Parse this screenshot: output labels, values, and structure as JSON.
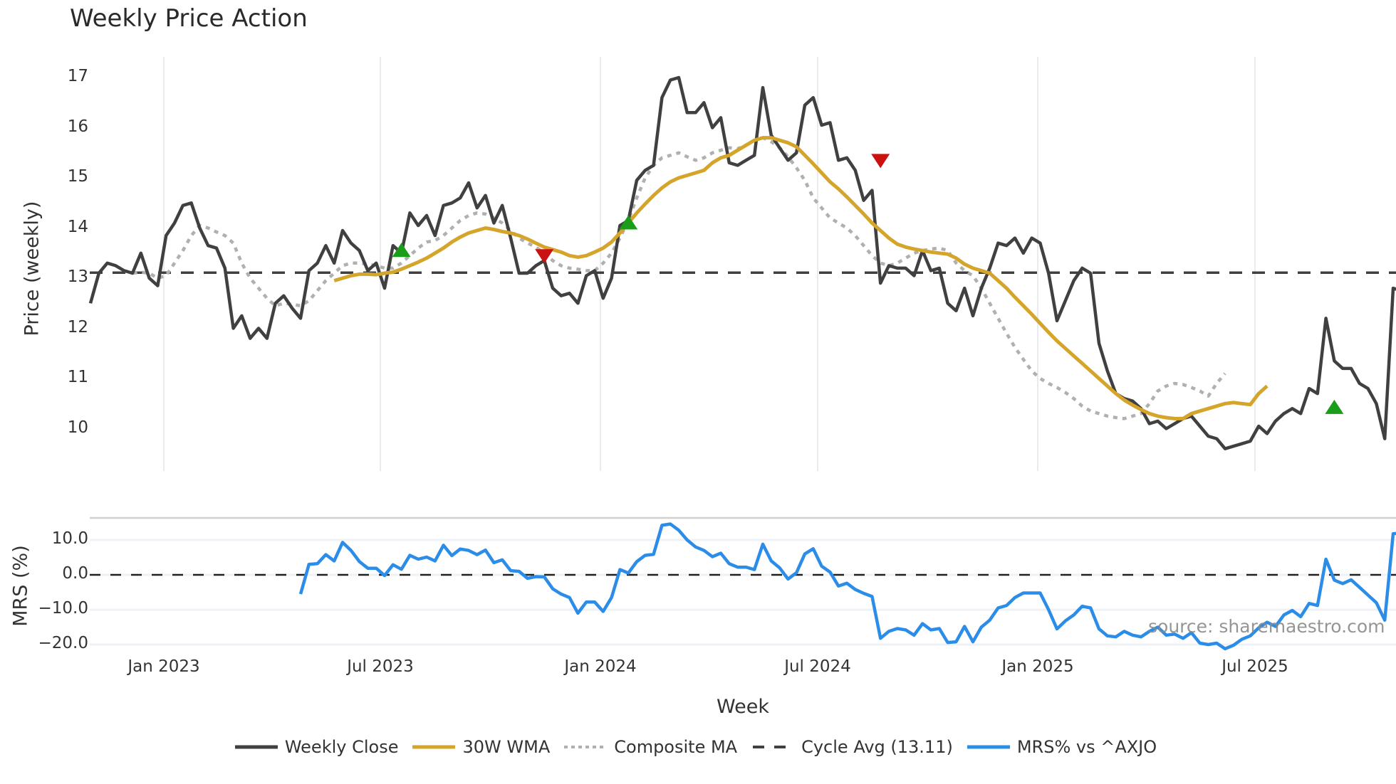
{
  "title": "Weekly Price Action",
  "colors": {
    "weekly_close": "#404040",
    "wma30": "#D4A52A",
    "composite_ma": "#b0b0b0",
    "cycle_avg": "#404040",
    "mrs": "#2B8DE8",
    "buy_marker": "#1a9e1a",
    "sell_marker": "#cc1111",
    "grid": "#e8ecf1"
  },
  "legend": {
    "weekly_close": "Weekly Close",
    "wma30": "30W WMA",
    "composite_ma": "Composite MA",
    "cycle_avg": "Cycle Avg (13.11)",
    "mrs": "MRS% vs ^AXJO"
  },
  "watermark": "source: sharemaestro.com",
  "chart_data": [
    {
      "type": "line",
      "title": "Weekly Price Action",
      "xlabel": "Week",
      "ylabel": "Price (weekly)",
      "yticks": [
        "17",
        "16",
        "15",
        "14",
        "13",
        "12",
        "11",
        "10"
      ],
      "xticks": [
        "Jan 2023",
        "Jul 2023",
        "Jan 2024",
        "Jul 2024",
        "Jan 2025",
        "Jul 2025"
      ],
      "ylim": [
        9.2,
        17.4
      ],
      "grid": true,
      "legend_position": "bottom",
      "x_start": "2022-11 (week 0)",
      "x_step": "1 week",
      "cycle_avg": 13.11,
      "series": [
        {
          "name": "Weekly Close",
          "values": [
            12.5,
            13.1,
            13.3,
            13.25,
            13.15,
            13.1,
            13.5,
            13.0,
            12.85,
            13.85,
            14.1,
            14.45,
            14.5,
            14.0,
            13.65,
            13.6,
            13.2,
            12.0,
            12.25,
            11.8,
            12.0,
            11.8,
            12.5,
            12.65,
            12.4,
            12.2,
            13.15,
            13.3,
            13.65,
            13.3,
            13.95,
            13.7,
            13.55,
            13.15,
            13.3,
            12.8,
            13.65,
            13.5,
            14.3,
            14.05,
            14.25,
            13.85,
            14.45,
            14.5,
            14.6,
            14.9,
            14.4,
            14.65,
            14.1,
            14.45,
            13.8,
            13.1,
            13.1,
            13.25,
            13.35,
            12.8,
            12.65,
            12.7,
            12.5,
            13.05,
            13.15,
            12.6,
            13.0,
            14.05,
            14.15,
            14.95,
            15.15,
            15.25,
            16.6,
            16.95,
            17.0,
            16.3,
            16.3,
            16.5,
            16.0,
            16.2,
            15.3,
            15.25,
            15.35,
            15.45,
            16.8,
            15.85,
            15.6,
            15.35,
            15.5,
            16.45,
            16.6,
            16.05,
            16.1,
            15.35,
            15.4,
            15.15,
            14.55,
            14.75,
            12.9,
            13.25,
            13.2,
            13.2,
            13.05,
            13.55,
            13.15,
            13.2,
            12.5,
            12.35,
            12.8,
            12.25,
            12.8,
            13.2,
            13.7,
            13.65,
            13.8,
            13.5,
            13.8,
            13.7,
            13.1,
            12.15,
            12.55,
            12.95,
            13.2,
            13.1,
            11.7,
            11.15,
            10.7,
            10.6,
            10.55,
            10.4,
            10.1,
            10.15,
            10.0,
            10.1,
            10.2,
            10.25,
            10.05,
            9.85,
            9.8,
            9.6,
            9.65,
            9.7,
            9.75,
            10.05,
            9.9,
            10.15,
            10.3,
            10.4,
            10.3,
            10.8,
            10.7,
            12.2,
            11.35,
            11.2,
            11.2,
            10.9,
            10.8,
            10.5,
            9.8,
            12.8,
            12.75
          ]
        },
        {
          "name": "30W WMA",
          "start_index": 29,
          "values": [
            12.95,
            13.0,
            13.05,
            13.08,
            13.08,
            13.07,
            13.1,
            13.12,
            13.18,
            13.25,
            13.32,
            13.4,
            13.5,
            13.6,
            13.72,
            13.82,
            13.9,
            13.95,
            14.0,
            13.97,
            13.93,
            13.9,
            13.85,
            13.78,
            13.7,
            13.62,
            13.57,
            13.52,
            13.45,
            13.42,
            13.45,
            13.52,
            13.6,
            13.72,
            13.9,
            14.1,
            14.3,
            14.48,
            14.65,
            14.8,
            14.92,
            15.0,
            15.05,
            15.1,
            15.15,
            15.3,
            15.4,
            15.45,
            15.55,
            15.65,
            15.75,
            15.8,
            15.8,
            15.75,
            15.7,
            15.62,
            15.45,
            15.28,
            15.1,
            14.92,
            14.78,
            14.62,
            14.45,
            14.28,
            14.1,
            13.95,
            13.8,
            13.68,
            13.62,
            13.58,
            13.55,
            13.52,
            13.5,
            13.48,
            13.4,
            13.28,
            13.2,
            13.15,
            13.1,
            12.95,
            12.8,
            12.62,
            12.45,
            12.28,
            12.1,
            11.92,
            11.75,
            11.6,
            11.45,
            11.3,
            11.15,
            11.0,
            10.85,
            10.7,
            10.57,
            10.47,
            10.38,
            10.3,
            10.25,
            10.22,
            10.2,
            10.2,
            10.3,
            10.35,
            10.4,
            10.45,
            10.5,
            10.52,
            10.5,
            10.48,
            10.7,
            10.85
          ]
        },
        {
          "name": "Composite MA",
          "start_index": 4,
          "values": [
            13.15,
            13.1,
            13.12,
            13.1,
            13.0,
            13.05,
            13.3,
            13.55,
            13.85,
            14.05,
            14.0,
            13.92,
            13.85,
            13.7,
            13.3,
            13.0,
            12.8,
            12.6,
            12.45,
            12.5,
            12.48,
            12.45,
            12.55,
            12.75,
            12.95,
            13.1,
            13.25,
            13.3,
            13.3,
            13.28,
            13.25,
            13.2,
            13.2,
            13.3,
            13.45,
            13.6,
            13.72,
            13.75,
            13.85,
            14.0,
            14.15,
            14.25,
            14.3,
            14.28,
            14.2,
            14.1,
            13.95,
            13.8,
            13.7,
            13.62,
            13.5,
            13.35,
            13.25,
            13.2,
            13.18,
            13.15,
            13.15,
            13.3,
            13.5,
            13.8,
            14.15,
            14.6,
            15.0,
            15.25,
            15.4,
            15.45,
            15.5,
            15.42,
            15.35,
            15.4,
            15.5,
            15.55,
            15.6,
            15.58,
            15.65,
            15.75,
            15.8,
            15.72,
            15.6,
            15.42,
            15.2,
            14.95,
            14.6,
            14.4,
            14.2,
            14.1,
            14.0,
            13.85,
            13.65,
            13.45,
            13.3,
            13.25,
            13.3,
            13.4,
            13.5,
            13.55,
            13.58,
            13.6,
            13.55,
            13.3,
            13.15,
            13.05,
            12.8,
            12.5,
            12.2,
            11.9,
            11.62,
            11.38,
            11.15,
            11.0,
            10.9,
            10.82,
            10.72,
            10.6,
            10.45,
            10.35,
            10.3,
            10.25,
            10.22,
            10.2,
            10.25,
            10.3,
            10.5,
            10.75,
            10.85,
            10.9,
            10.88,
            10.82,
            10.75,
            10.65,
            10.9,
            11.1
          ]
        },
        {
          "name": "Cycle Avg (13.11)",
          "values": [
            13.11
          ]
        }
      ],
      "markers": [
        {
          "type": "buy",
          "index": 37,
          "value": 13.55
        },
        {
          "type": "sell",
          "index": 54,
          "value": 13.45
        },
        {
          "type": "buy",
          "index": 64,
          "value": 14.1
        },
        {
          "type": "sell",
          "index": 94,
          "value": 15.35
        },
        {
          "type": "buy",
          "index": 148,
          "value": 10.42
        }
      ]
    },
    {
      "type": "line",
      "ylabel": "MRS (%)",
      "yticks": [
        "10.0",
        "0.0",
        "−10.0",
        "−20.0"
      ],
      "ylim": [
        -22,
        15
      ],
      "zero_line": 0.0,
      "series": [
        {
          "name": "MRS% vs ^AXJO",
          "start_index": 25,
          "values": [
            -5.5,
            3.0,
            3.2,
            5.8,
            4.0,
            9.3,
            7.0,
            3.8,
            1.9,
            1.9,
            -0.2,
            2.9,
            1.6,
            5.6,
            4.5,
            5.1,
            4.0,
            8.5,
            5.5,
            7.4,
            7.0,
            5.8,
            7.1,
            3.5,
            4.3,
            1.2,
            1.0,
            -1.0,
            -0.5,
            -0.6,
            -4.0,
            -5.5,
            -6.5,
            -11.0,
            -7.8,
            -7.8,
            -10.5,
            -6.5,
            1.5,
            0.5,
            3.8,
            5.6,
            5.9,
            14.2,
            14.6,
            12.8,
            10.0,
            8.0,
            7.0,
            5.2,
            6.2,
            3.2,
            2.2,
            2.2,
            1.5,
            8.8,
            4.0,
            2.0,
            -1.2,
            0.6,
            6.0,
            7.5,
            2.5,
            0.8,
            -3.2,
            -2.4,
            -4.2,
            -5.3,
            -6.2,
            -18.2,
            -16.2,
            -15.4,
            -15.8,
            -17.3,
            -14.0,
            -15.8,
            -15.4,
            -19.4,
            -19.2,
            -14.8,
            -19.2,
            -15.0,
            -13.0,
            -9.5,
            -8.8,
            -6.5,
            -5.2,
            -5.2,
            -5.2,
            -10.0,
            -15.5,
            -13.2,
            -11.5,
            -9.0,
            -9.5,
            -15.5,
            -17.5,
            -17.8,
            -16.2,
            -17.3,
            -17.8,
            -16.2,
            -15.0,
            -17.3,
            -17.0,
            -18.2,
            -16.6,
            -19.6,
            -20.0,
            -19.6,
            -21.2,
            -20.2,
            -18.5,
            -17.5,
            -15.2,
            -13.6,
            -14.8,
            -11.5,
            -10.2,
            -12.0,
            -8.2,
            -8.8,
            4.5,
            -1.5,
            -2.5,
            -1.4,
            -3.6,
            -5.8,
            -8.0,
            -13.0,
            11.8,
            12.0
          ]
        }
      ]
    }
  ]
}
